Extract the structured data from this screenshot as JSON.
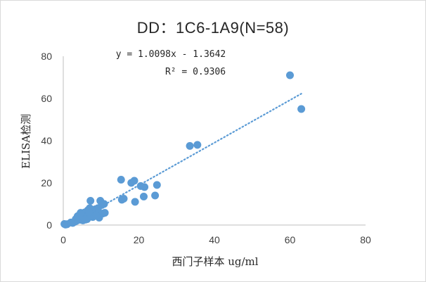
{
  "chart_data": {
    "type": "scatter",
    "title": "DD：1C6-1A9(N=58)",
    "xlabel": "西门子样本 ug/ml",
    "ylabel": "ELISA检测",
    "xlim": [
      0,
      80
    ],
    "ylim": [
      0,
      80
    ],
    "x_ticks": [
      "0",
      "20",
      "40",
      "60",
      "80"
    ],
    "y_ticks": [
      "0",
      "20",
      "40",
      "60",
      "80"
    ],
    "grid": false,
    "legend": "none",
    "point_color": "#5b9bd5",
    "trendline": {
      "type": "linear",
      "slope": 1.0098,
      "intercept": -1.3642,
      "r2": 0.9306,
      "equation_text": "y = 1.0098x - 1.3642",
      "r2_text": "R² = 0.9306",
      "x_range": [
        2,
        63
      ],
      "style": "dotted",
      "color": "#5b9bd5"
    },
    "points": [
      [
        0.3,
        0.5
      ],
      [
        0.6,
        0.2
      ],
      [
        1.0,
        0.4
      ],
      [
        2.5,
        1.0
      ],
      [
        3.0,
        1.5
      ],
      [
        3.5,
        2.0
      ],
      [
        3.8,
        4.2
      ],
      [
        4.0,
        3.0
      ],
      [
        4.3,
        4.8
      ],
      [
        4.5,
        2.5
      ],
      [
        4.8,
        3.8
      ],
      [
        5.0,
        5.2
      ],
      [
        5.2,
        2.2
      ],
      [
        5.5,
        4.0
      ],
      [
        5.7,
        6.0
      ],
      [
        6.0,
        3.2
      ],
      [
        6.2,
        5.0
      ],
      [
        6.5,
        7.0
      ],
      [
        6.7,
        4.5
      ],
      [
        7.0,
        8.0
      ],
      [
        7.2,
        11.5
      ],
      [
        7.5,
        5.5
      ],
      [
        7.8,
        3.8
      ],
      [
        8.0,
        6.5
      ],
      [
        8.3,
        6.0
      ],
      [
        8.5,
        7.5
      ],
      [
        9.0,
        5.0
      ],
      [
        9.5,
        3.5
      ],
      [
        9.8,
        11.5
      ],
      [
        10.5,
        5.5
      ],
      [
        10.8,
        10.0
      ],
      [
        10.2,
        9.5
      ],
      [
        9.2,
        8.0
      ],
      [
        6.3,
        2.8
      ],
      [
        5.4,
        3.6
      ],
      [
        15.3,
        21.5
      ],
      [
        15.5,
        12.0
      ],
      [
        16.0,
        12.5
      ],
      [
        18.0,
        20.0
      ],
      [
        18.8,
        21.0
      ],
      [
        19.0,
        11.0
      ],
      [
        20.5,
        18.5
      ],
      [
        21.3,
        13.5
      ],
      [
        21.5,
        18.0
      ],
      [
        24.3,
        14.0
      ],
      [
        24.8,
        19.0
      ],
      [
        33.5,
        37.5
      ],
      [
        35.5,
        38.0
      ],
      [
        60.0,
        71.0
      ],
      [
        63.0,
        55.0
      ],
      [
        4.6,
        5.8
      ],
      [
        7.4,
        7.2
      ],
      [
        5.9,
        2.6
      ],
      [
        8.7,
        4.4
      ],
      [
        6.8,
        6.2
      ],
      [
        3.3,
        2.8
      ],
      [
        2.0,
        1.2
      ],
      [
        11.0,
        5.8
      ]
    ]
  }
}
